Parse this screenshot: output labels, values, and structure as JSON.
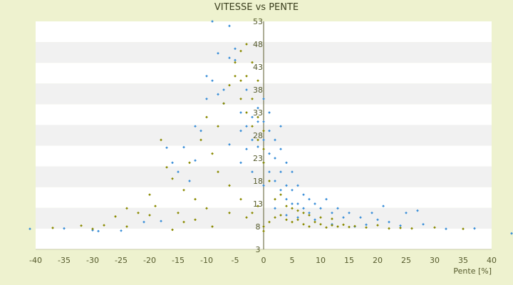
{
  "chart_data": {
    "type": "scatter",
    "title": "VITESSE vs PENTE",
    "xlabel": "Pente [%]",
    "ylabel": "",
    "xlim": [
      -40,
      40
    ],
    "ylim": [
      3,
      53
    ],
    "x_ticks": [
      "-40",
      "-35",
      "-30",
      "-25",
      "-20",
      "-15",
      "-10",
      "-5",
      "0",
      "5",
      "10",
      "15",
      "20",
      "25",
      "30",
      "35",
      "40"
    ],
    "y_ticks": [
      "53",
      "48",
      "43",
      "38",
      "33",
      "28",
      "23",
      "18",
      "13",
      "8",
      "3"
    ],
    "grid": "horizontal alternating bands",
    "legend": "none",
    "series": [
      {
        "color": "#3b8fd8",
        "description": "dense cloud, higher speeds on downhill",
        "points": [
          [
            -41,
            7.5
          ],
          [
            -35,
            7.6
          ],
          [
            -30,
            7.2
          ],
          [
            -29,
            7.0
          ],
          [
            -25,
            7.1
          ],
          [
            -21,
            9.0
          ],
          [
            -18,
            9.2
          ],
          [
            -17,
            25.3
          ],
          [
            -16,
            22.0
          ],
          [
            -15,
            20.0
          ],
          [
            -14,
            25.4
          ],
          [
            -13,
            18.0
          ],
          [
            -12,
            22.5
          ],
          [
            -11,
            29.0
          ],
          [
            -10,
            41.0
          ],
          [
            -9,
            40.0
          ],
          [
            -8,
            37.0
          ],
          [
            -7,
            38.0
          ],
          [
            -6,
            45.0
          ],
          [
            -5,
            47.0
          ],
          [
            -5,
            44.5
          ],
          [
            -4,
            33.0
          ],
          [
            -4,
            29.0
          ],
          [
            -3,
            30.0
          ],
          [
            -3,
            25.0
          ],
          [
            -2,
            32.0
          ],
          [
            -2,
            27.0
          ],
          [
            -1,
            31.0
          ],
          [
            -1,
            25.5
          ],
          [
            0,
            31.0
          ],
          [
            0,
            27.0
          ],
          [
            0,
            22.0
          ],
          [
            1,
            29.0
          ],
          [
            1,
            24.0
          ],
          [
            1,
            20.0
          ],
          [
            2,
            27.0
          ],
          [
            2,
            23.0
          ],
          [
            2,
            18.0
          ],
          [
            3,
            25.0
          ],
          [
            3,
            20.0
          ],
          [
            3,
            16.0
          ],
          [
            4,
            22.0
          ],
          [
            4,
            17.0
          ],
          [
            4,
            14.0
          ],
          [
            5,
            20.0
          ],
          [
            5,
            16.0
          ],
          [
            5,
            13.0
          ],
          [
            6,
            17.0
          ],
          [
            6,
            13.0
          ],
          [
            7,
            15.0
          ],
          [
            7,
            12.0
          ],
          [
            8,
            14.0
          ],
          [
            8,
            11.0
          ],
          [
            9,
            13.0
          ],
          [
            10,
            12.0
          ],
          [
            11,
            14.0
          ],
          [
            12,
            11.0
          ],
          [
            13,
            12.0
          ],
          [
            14,
            10.0
          ],
          [
            15,
            11.0
          ],
          [
            17,
            10.0
          ],
          [
            19,
            11.0
          ],
          [
            20,
            9.5
          ],
          [
            22,
            9.0
          ],
          [
            25,
            11.0
          ],
          [
            28,
            8.5
          ],
          [
            32,
            7.5
          ],
          [
            37,
            7.6
          ],
          [
            44,
            6.5
          ],
          [
            -9,
            53.0
          ],
          [
            -6,
            52.0
          ],
          [
            -8,
            46.0
          ],
          [
            -10,
            36.0
          ],
          [
            -12,
            30.0
          ],
          [
            -7,
            35.0
          ],
          [
            -3,
            38.0
          ],
          [
            -1,
            34.0
          ],
          [
            0,
            36.0
          ],
          [
            1,
            33.0
          ],
          [
            3,
            30.0
          ],
          [
            2,
            12.0
          ],
          [
            0,
            17.0
          ],
          [
            -2,
            20.0
          ],
          [
            -4,
            22.0
          ],
          [
            -6,
            26.0
          ],
          [
            4,
            10.5
          ],
          [
            6,
            10.0
          ],
          [
            9,
            9.5
          ],
          [
            12,
            8.5
          ],
          [
            16,
            8.0
          ],
          [
            18,
            8.4
          ],
          [
            24,
            8.2
          ],
          [
            27,
            11.5
          ],
          [
            21,
            12.5
          ]
        ]
      },
      {
        "color": "#8a8a00",
        "description": "olive series, lower speeds and flat base near 8",
        "points": [
          [
            -37,
            7.7
          ],
          [
            -32,
            8.2
          ],
          [
            -28,
            8.3
          ],
          [
            -26,
            10.2
          ],
          [
            -24,
            8.0
          ],
          [
            -22,
            11.0
          ],
          [
            -20,
            15.0
          ],
          [
            -19,
            12.5
          ],
          [
            -18,
            27.0
          ],
          [
            -17,
            21.0
          ],
          [
            -16,
            18.5
          ],
          [
            -15,
            11.0
          ],
          [
            -14,
            16.0
          ],
          [
            -13,
            22.0
          ],
          [
            -12,
            14.0
          ],
          [
            -11,
            27.0
          ],
          [
            -10,
            32.0
          ],
          [
            -9,
            24.0
          ],
          [
            -8,
            30.0
          ],
          [
            -7,
            35.0
          ],
          [
            -6,
            39.0
          ],
          [
            -5,
            44.0
          ],
          [
            -5,
            41.0
          ],
          [
            -4,
            36.0
          ],
          [
            -4,
            40.0
          ],
          [
            -3,
            33.0
          ],
          [
            -3,
            41.0
          ],
          [
            -2,
            30.0
          ],
          [
            -2,
            36.0
          ],
          [
            -1,
            27.0
          ],
          [
            -1,
            32.0
          ],
          [
            0,
            25.0
          ],
          [
            0,
            29.0
          ],
          [
            0,
            8.0
          ],
          [
            0,
            7.0
          ],
          [
            1,
            9.0
          ],
          [
            2,
            10.0
          ],
          [
            3,
            10.5
          ],
          [
            4,
            9.5
          ],
          [
            5,
            9.0
          ],
          [
            6,
            9.5
          ],
          [
            7,
            8.5
          ],
          [
            8,
            8.0
          ],
          [
            9,
            9.0
          ],
          [
            10,
            8.5
          ],
          [
            11,
            7.8
          ],
          [
            12,
            8.3
          ],
          [
            13,
            8.0
          ],
          [
            14,
            8.4
          ],
          [
            15,
            7.9
          ],
          [
            16,
            8.1
          ],
          [
            18,
            7.8
          ],
          [
            20,
            8.3
          ],
          [
            22,
            7.6
          ],
          [
            24,
            7.7
          ],
          [
            26,
            7.6
          ],
          [
            30,
            7.8
          ],
          [
            35,
            7.5
          ],
          [
            -3,
            10.0
          ],
          [
            -2,
            11.0
          ],
          [
            -1,
            12.5
          ],
          [
            -4,
            14.0
          ],
          [
            -6,
            17.0
          ],
          [
            -8,
            20.0
          ],
          [
            -10,
            12.0
          ],
          [
            -14,
            9.0
          ],
          [
            -20,
            10.5
          ],
          [
            -24,
            12.0
          ],
          [
            -30,
            7.5
          ],
          [
            -16,
            7.3
          ],
          [
            -12,
            9.5
          ],
          [
            -9,
            8.0
          ],
          [
            -6,
            11.0
          ],
          [
            1,
            18.0
          ],
          [
            3,
            15.0
          ],
          [
            5,
            12.0
          ],
          [
            7,
            11.0
          ],
          [
            -2,
            44.0
          ],
          [
            -3,
            48.0
          ],
          [
            -4,
            46.5
          ],
          [
            -1,
            40.0
          ],
          [
            0,
            22.0
          ],
          [
            2,
            14.0
          ],
          [
            4,
            12.5
          ],
          [
            6,
            11.5
          ],
          [
            8,
            10.5
          ],
          [
            10,
            10.0
          ],
          [
            12,
            9.7
          ]
        ]
      }
    ]
  }
}
